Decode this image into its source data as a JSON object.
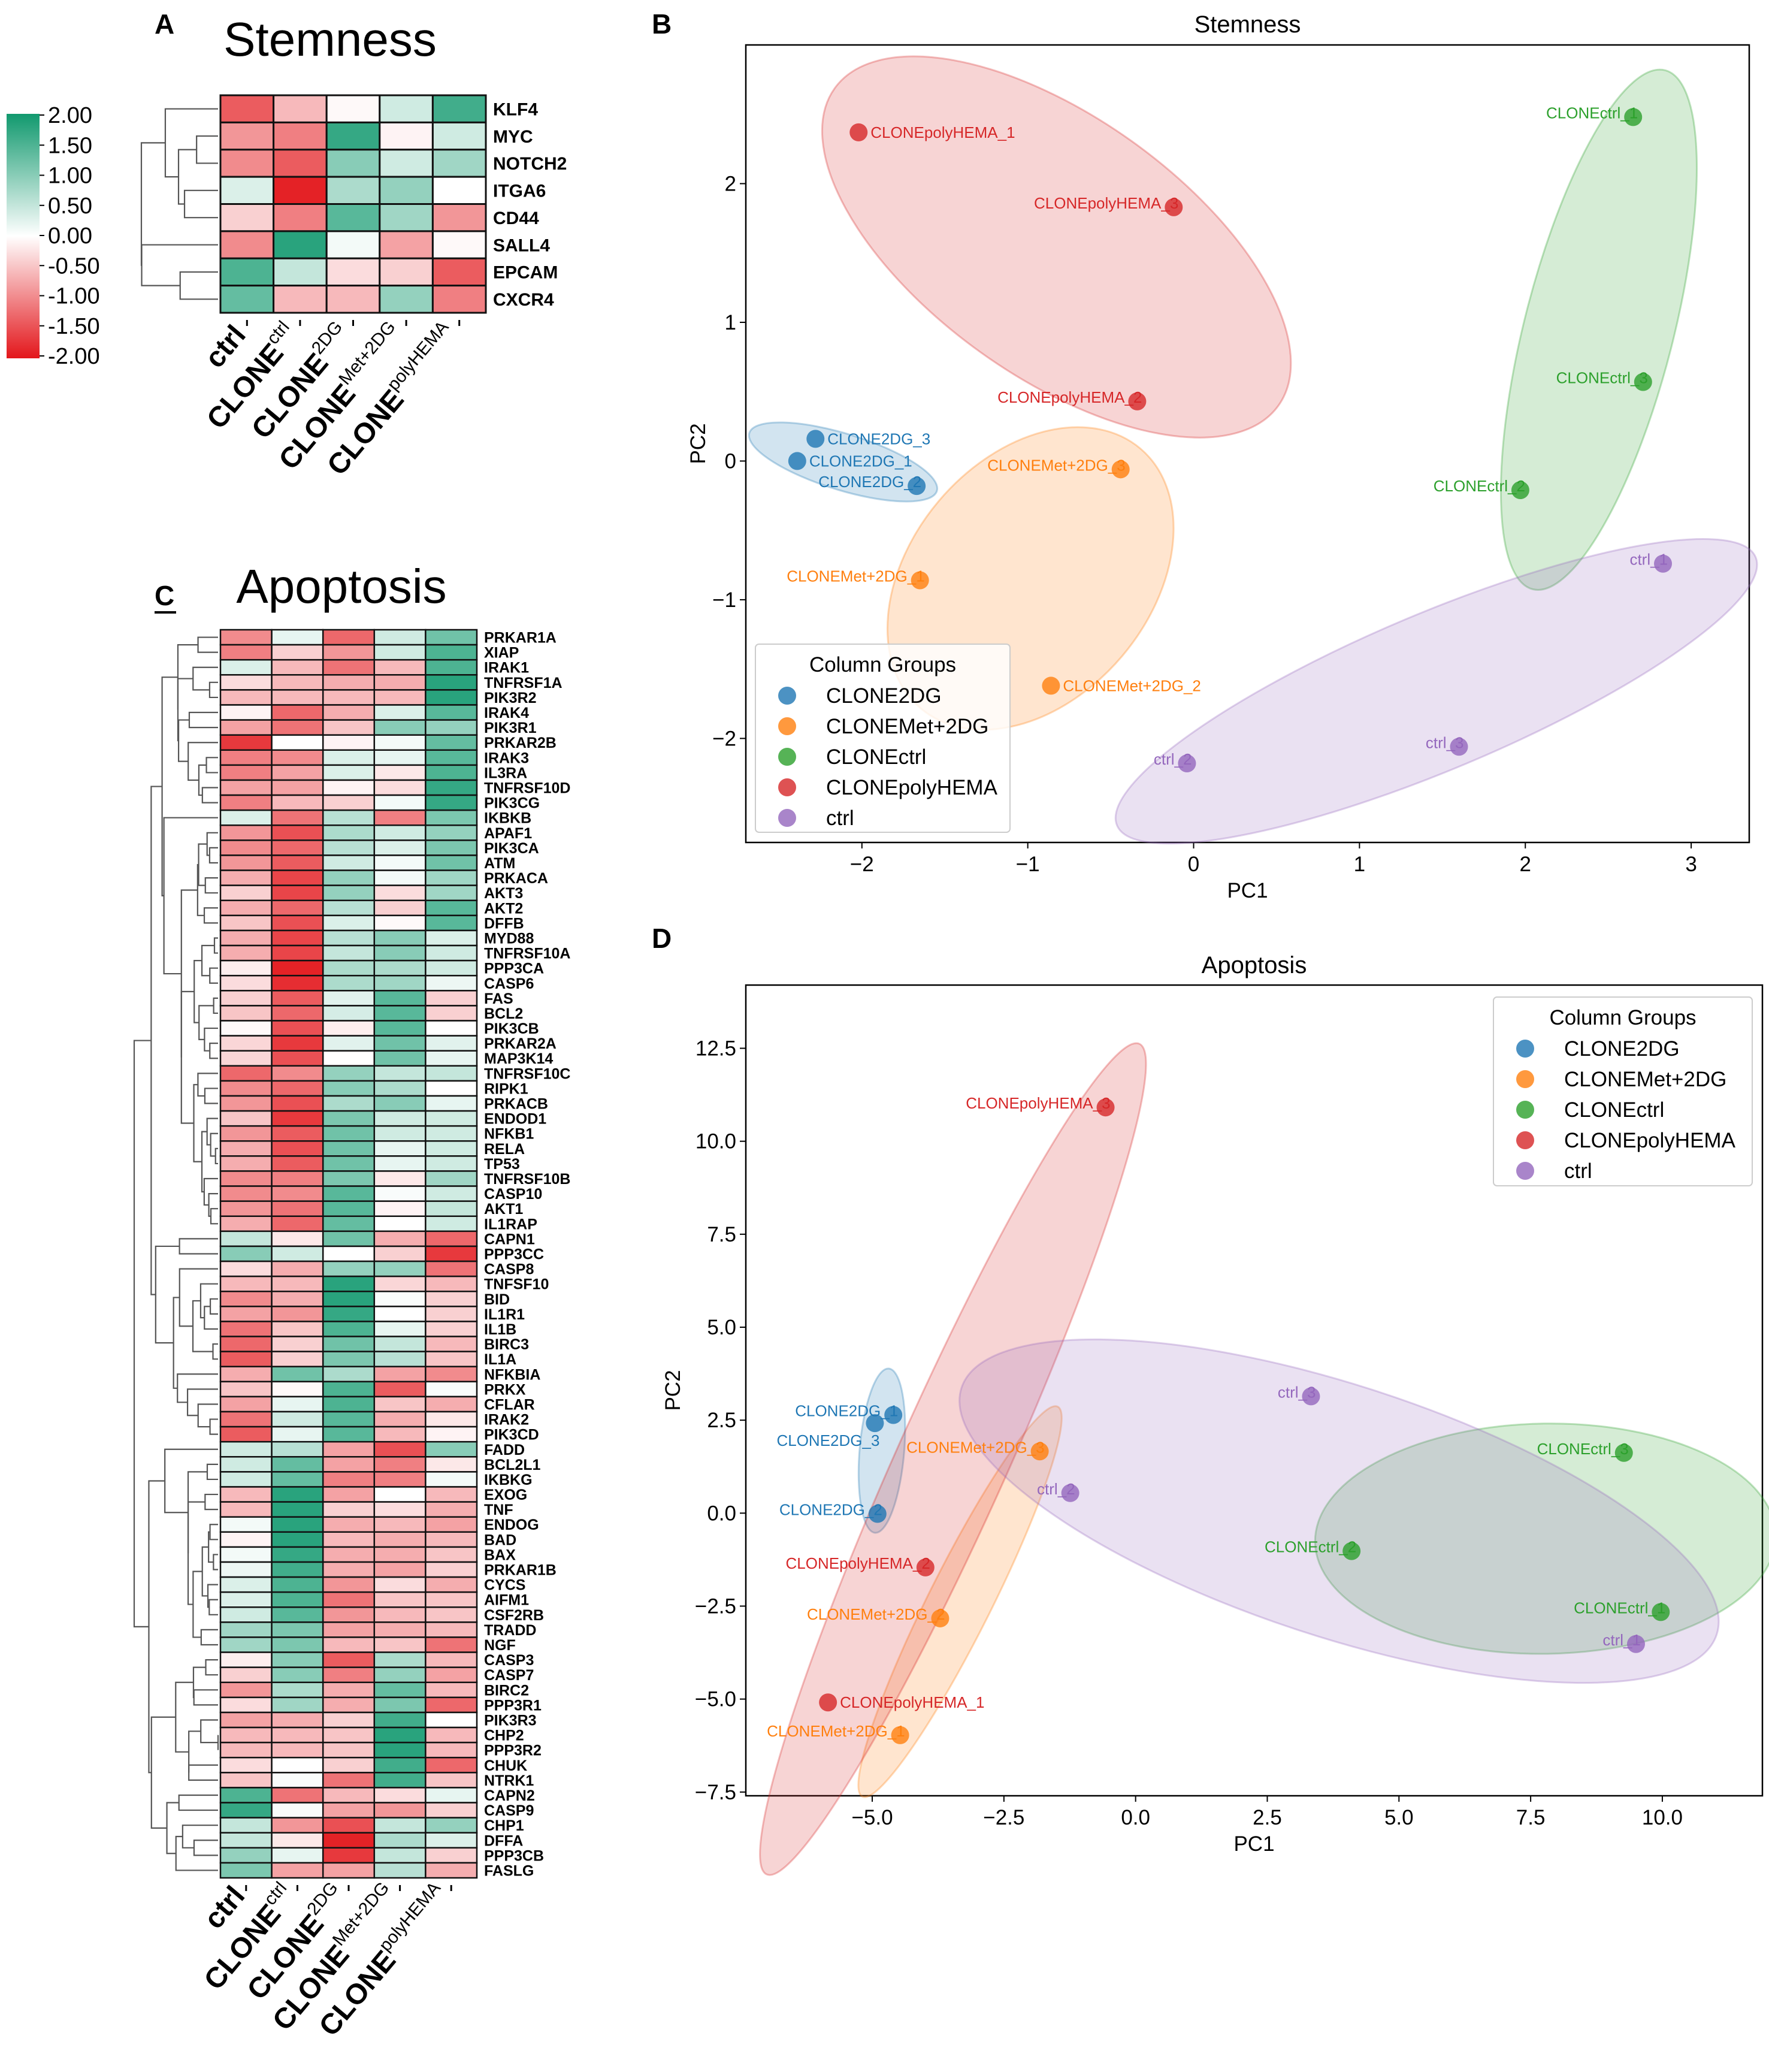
{
  "panels": {
    "a": "A",
    "b": "B",
    "c": "C",
    "d": "D"
  },
  "colorbar": {
    "min": -2,
    "max": 2,
    "tick_values": [
      2,
      1.5,
      1,
      0.5,
      0,
      -0.5,
      -1,
      -1.5,
      -2
    ],
    "tick_labels": [
      "2.00",
      "1.50",
      "1.00",
      "0.50",
      "0.00",
      "-0.50",
      "-1.00",
      "-1.50",
      "-2.00"
    ],
    "colors": {
      "low": "#e3161b",
      "mid": "#ffffff",
      "high": "#11996e"
    }
  },
  "group_colors": {
    "CLONE2DG": "#1f77b4",
    "CLONEMet+2DG": "#ff7f0e",
    "CLONEctrl": "#2ca02c",
    "CLONEpolyHEMA": "#d62728",
    "ctrl": "#9467bd"
  },
  "chart_data": [
    {
      "type": "heatmap",
      "title": "Stemness",
      "columns": [
        {
          "base": "ctrl",
          "sup": ""
        },
        {
          "base": "CLONE",
          "sup": "ctrl"
        },
        {
          "base": "CLONE",
          "sup": "2DG"
        },
        {
          "base": "CLONE",
          "sup": "Met+2DG"
        },
        {
          "base": "CLONE",
          "sup": "polyHEMA"
        }
      ],
      "rows": [
        "KLF4",
        "MYC",
        "NOTCH2",
        "ITGA6",
        "CD44",
        "SALL4",
        "EPCAM",
        "CXCR4"
      ],
      "values": [
        [
          -1.4,
          -0.6,
          -0.05,
          0.4,
          1.6
        ],
        [
          -0.9,
          -1.1,
          1.7,
          -0.1,
          0.4
        ],
        [
          -1.0,
          -1.4,
          1.0,
          0.4,
          0.8
        ],
        [
          0.3,
          -1.9,
          0.7,
          0.9,
          0.0
        ],
        [
          -0.4,
          -1.1,
          1.4,
          0.8,
          -0.9
        ],
        [
          -1.0,
          1.8,
          0.1,
          -0.8,
          -0.05
        ],
        [
          1.5,
          0.5,
          -0.3,
          -0.4,
          -1.4
        ],
        [
          1.3,
          -0.6,
          -0.6,
          0.9,
          -1.1
        ]
      ],
      "value_range": [
        -2,
        2
      ]
    },
    {
      "type": "heatmap",
      "title": "Apoptosis",
      "columns": [
        {
          "base": "ctrl",
          "sup": ""
        },
        {
          "base": "CLONE",
          "sup": "ctrl"
        },
        {
          "base": "CLONE",
          "sup": "2DG"
        },
        {
          "base": "CLONE",
          "sup": "Met+2DG"
        },
        {
          "base": "CLONE",
          "sup": "polyHEMA"
        }
      ],
      "rows": [
        "PRKAR1A",
        "XIAP",
        "IRAK1",
        "TNFRSF1A",
        "PIK3R2",
        "IRAK4",
        "PIK3R1",
        "PRKAR2B",
        "IRAK3",
        "IL3RA",
        "TNFRSF10D",
        "PIK3CG",
        "IKBKB",
        "APAF1",
        "PIK3CA",
        "ATM",
        "PRKACA",
        "AKT3",
        "AKT2",
        "DFFB",
        "MYD88",
        "TNFRSF10A",
        "PPP3CA",
        "CASP6",
        "FAS",
        "BCL2",
        "PIK3CB",
        "PRKAR2A",
        "MAP3K14",
        "TNFRSF10C",
        "RIPK1",
        "PRKACB",
        "ENDOD1",
        "NFKB1",
        "RELA",
        "TP53",
        "TNFRSF10B",
        "CASP10",
        "AKT1",
        "IL1RAP",
        "CAPN1",
        "PPP3CC",
        "CASP8",
        "TNFSF10",
        "BID",
        "IL1R1",
        "IL1B",
        "BIRC3",
        "IL1A",
        "NFKBIA",
        "PRKX",
        "CFLAR",
        "IRAK2",
        "PIK3CD",
        "FADD",
        "BCL2L1",
        "IKBKG",
        "EXOG",
        "TNF",
        "ENDOG",
        "BAD",
        "BAX",
        "PRKAR1B",
        "CYCS",
        "AIFM1",
        "CSF2RB",
        "TRADD",
        "NGF",
        "CASP3",
        "CASP7",
        "BIRC2",
        "PPP3R1",
        "PIK3R3",
        "CHP2",
        "PPP3R2",
        "CHUK",
        "NTRK1",
        "CAPN2",
        "CASP9",
        "CHP1",
        "DFFA",
        "PPP3CB",
        "FASLG"
      ],
      "values": [
        [
          -1.0,
          0.2,
          -1.3,
          0.4,
          1.2
        ],
        [
          -1.1,
          -0.4,
          -0.9,
          0.4,
          1.5
        ],
        [
          0.3,
          -0.6,
          -1.2,
          -0.6,
          1.5
        ],
        [
          -0.3,
          -0.6,
          -0.7,
          -0.7,
          1.8
        ],
        [
          -0.6,
          -0.6,
          -0.6,
          -0.6,
          1.8
        ],
        [
          -0.1,
          -1.3,
          -0.7,
          0.3,
          1.4
        ],
        [
          -0.8,
          -1.2,
          -0.5,
          1.0,
          0.9
        ],
        [
          -1.7,
          0.0,
          -0.1,
          0.1,
          1.3
        ],
        [
          -1.1,
          -1.0,
          0.3,
          0.2,
          1.4
        ],
        [
          -1.1,
          -0.8,
          0.3,
          -0.2,
          1.5
        ],
        [
          -0.8,
          -0.8,
          -0.1,
          -0.3,
          1.7
        ],
        [
          -1.1,
          -0.6,
          -0.4,
          0.1,
          1.7
        ],
        [
          0.3,
          -1.2,
          0.6,
          -1.1,
          1.1
        ],
        [
          -0.9,
          -1.5,
          0.7,
          0.4,
          0.9
        ],
        [
          -1.0,
          -1.3,
          0.6,
          0.3,
          1.1
        ],
        [
          -0.9,
          -1.4,
          0.4,
          0.1,
          1.2
        ],
        [
          -0.7,
          -1.6,
          0.9,
          0.1,
          0.8
        ],
        [
          -0.4,
          -1.6,
          0.9,
          -0.3,
          0.8
        ],
        [
          -0.7,
          -1.3,
          0.6,
          -0.4,
          1.4
        ],
        [
          -0.5,
          -1.5,
          0.3,
          -0.05,
          1.4
        ],
        [
          -0.7,
          -1.6,
          0.6,
          1.0,
          0.3
        ],
        [
          -0.7,
          -1.6,
          0.5,
          1.0,
          0.4
        ],
        [
          -0.15,
          -1.9,
          0.7,
          0.7,
          0.4
        ],
        [
          -0.3,
          -1.8,
          0.7,
          0.8,
          0.15
        ],
        [
          -0.4,
          -1.4,
          0.25,
          1.4,
          -0.4
        ],
        [
          -0.5,
          -1.3,
          0.35,
          1.4,
          -0.4
        ],
        [
          -0.05,
          -1.5,
          -0.15,
          1.4,
          0.0
        ],
        [
          -0.35,
          -1.7,
          0.25,
          1.2,
          0.25
        ],
        [
          -0.35,
          -1.5,
          0.0,
          1.2,
          0.2
        ],
        [
          -1.3,
          -1.0,
          0.9,
          0.5,
          0.5
        ],
        [
          -1.0,
          -1.3,
          1.0,
          0.7,
          0.0
        ],
        [
          -0.9,
          -1.5,
          0.7,
          1.0,
          0.2
        ],
        [
          -0.5,
          -1.7,
          1.1,
          0.4,
          0.4
        ],
        [
          -0.9,
          -1.4,
          1.2,
          0.4,
          0.4
        ],
        [
          -0.7,
          -1.5,
          1.2,
          0.2,
          0.4
        ],
        [
          -0.7,
          -1.4,
          1.2,
          0.2,
          0.4
        ],
        [
          -1.0,
          -1.1,
          1.1,
          -0.2,
          0.8
        ],
        [
          -1.0,
          -1.0,
          1.4,
          0.05,
          0.4
        ],
        [
          -0.9,
          -1.2,
          1.4,
          -0.1,
          0.5
        ],
        [
          -0.7,
          -1.3,
          1.3,
          0.0,
          0.4
        ],
        [
          0.5,
          -0.2,
          1.2,
          -0.7,
          -1.3
        ],
        [
          1.0,
          0.4,
          0.0,
          -0.4,
          -1.7
        ],
        [
          -0.3,
          -0.7,
          0.9,
          0.9,
          -1.2
        ],
        [
          -0.6,
          -0.6,
          1.8,
          -0.35,
          -0.6
        ],
        [
          -1.0,
          -0.7,
          1.8,
          0.05,
          -0.4
        ],
        [
          -0.8,
          -0.9,
          1.7,
          0.0,
          -0.4
        ],
        [
          -1.2,
          -0.5,
          1.5,
          0.2,
          -0.4
        ],
        [
          -1.3,
          -0.4,
          1.2,
          0.5,
          -0.6
        ],
        [
          -1.4,
          -0.4,
          1.1,
          0.6,
          -0.5
        ],
        [
          -0.7,
          1.2,
          0.7,
          -0.8,
          -1.0
        ],
        [
          -0.5,
          -0.05,
          1.5,
          -1.4,
          0.05
        ],
        [
          -0.8,
          0.2,
          1.5,
          -0.5,
          -0.7
        ],
        [
          -1.2,
          0.4,
          1.4,
          -0.7,
          -0.2
        ],
        [
          -1.4,
          0.2,
          1.4,
          -0.6,
          -0.1
        ],
        [
          0.4,
          0.6,
          -0.8,
          -1.5,
          1.0
        ],
        [
          0.4,
          1.3,
          -0.8,
          -1.1,
          -0.2
        ],
        [
          0.4,
          1.3,
          -1.1,
          -1.1,
          0.1
        ],
        [
          -0.6,
          1.8,
          -0.8,
          0.0,
          -0.6
        ],
        [
          -0.6,
          1.8,
          -0.4,
          -0.3,
          -0.7
        ],
        [
          0.1,
          1.8,
          -0.7,
          -0.6,
          -0.8
        ],
        [
          -0.1,
          1.8,
          -0.6,
          -0.7,
          -0.6
        ],
        [
          0.1,
          1.7,
          -0.7,
          -0.7,
          -0.5
        ],
        [
          0.15,
          1.6,
          -0.7,
          -0.8,
          -0.4
        ],
        [
          0.3,
          1.5,
          -0.9,
          -0.3,
          -0.7
        ],
        [
          0.3,
          1.5,
          -1.2,
          -0.5,
          -0.5
        ],
        [
          0.4,
          1.4,
          -0.9,
          -0.6,
          -0.5
        ],
        [
          0.8,
          1.1,
          -0.8,
          -0.7,
          -0.6
        ],
        [
          0.8,
          1.1,
          -0.6,
          -0.5,
          -1.2
        ],
        [
          -0.15,
          1.0,
          -1.4,
          0.7,
          -0.6
        ],
        [
          -0.4,
          1.0,
          -1.1,
          0.9,
          -0.8
        ],
        [
          -0.9,
          0.7,
          -0.7,
          1.3,
          -0.6
        ],
        [
          -0.3,
          0.8,
          -0.7,
          1.1,
          -1.3
        ],
        [
          -0.8,
          -0.7,
          -0.4,
          1.6,
          0.0
        ],
        [
          -0.6,
          -0.6,
          -0.5,
          1.8,
          -0.6
        ],
        [
          -0.6,
          -0.6,
          -0.5,
          1.8,
          -0.6
        ],
        [
          -0.3,
          0.0,
          -0.4,
          1.6,
          -1.3
        ],
        [
          -0.5,
          0.05,
          -1.2,
          1.6,
          -0.5
        ],
        [
          1.5,
          -1.2,
          -0.6,
          -0.3,
          0.2
        ],
        [
          1.7,
          0.05,
          -0.8,
          -0.9,
          -0.4
        ],
        [
          0.5,
          -0.9,
          -1.5,
          0.5,
          0.9
        ],
        [
          0.5,
          -0.2,
          -1.9,
          0.7,
          0.3
        ],
        [
          0.9,
          0.2,
          -1.7,
          0.5,
          -0.4
        ],
        [
          1.1,
          -0.8,
          -0.8,
          0.6,
          -0.7
        ]
      ],
      "value_range": [
        -2,
        2
      ]
    },
    {
      "type": "scatter",
      "title": "Stemness",
      "xlabel": "PC1",
      "ylabel": "PC2",
      "xlim": [
        -2.7,
        3.35
      ],
      "ylim": [
        -2.75,
        3.0
      ],
      "xticks": [
        -2,
        -1,
        0,
        1,
        2,
        3
      ],
      "xtick_labels": [
        "−2",
        "−1",
        "0",
        "1",
        "2",
        "3"
      ],
      "yticks": [
        -2,
        -1,
        0,
        1,
        2
      ],
      "ytick_labels": [
        "−2",
        "−1",
        "0",
        "1",
        "2"
      ],
      "legend": {
        "title": "Column Groups",
        "position": "lower-left"
      },
      "groups": [
        {
          "name": "CLONE2DG",
          "points": [
            {
              "label": "CLONE2DG_1",
              "x": -2.39,
              "y": 0.0
            },
            {
              "label": "CLONE2DG_2",
              "x": -1.67,
              "y": -0.18
            },
            {
              "label": "CLONE2DG_3",
              "x": -2.28,
              "y": 0.16
            }
          ]
        },
        {
          "name": "CLONEMet+2DG",
          "points": [
            {
              "label": "CLONEMet+2DG_1",
              "x": -1.65,
              "y": -0.86
            },
            {
              "label": "CLONEMet+2DG_2",
              "x": -0.86,
              "y": -1.62
            },
            {
              "label": "CLONEMet+2DG_3",
              "x": -0.44,
              "y": -0.06
            }
          ]
        },
        {
          "name": "CLONEctrl",
          "points": [
            {
              "label": "CLONEctrl_1",
              "x": 2.65,
              "y": 2.48
            },
            {
              "label": "CLONEctrl_2",
              "x": 1.97,
              "y": -0.21
            },
            {
              "label": "CLONEctrl_3",
              "x": 2.71,
              "y": 0.57
            }
          ]
        },
        {
          "name": "CLONEpolyHEMA",
          "points": [
            {
              "label": "CLONEpolyHEMA_1",
              "x": -2.02,
              "y": 2.37
            },
            {
              "label": "CLONEpolyHEMA_2",
              "x": -0.34,
              "y": 0.43
            },
            {
              "label": "CLONEpolyHEMA_3",
              "x": -0.12,
              "y": 1.83
            }
          ]
        },
        {
          "name": "ctrl",
          "points": [
            {
              "label": "ctrl_1",
              "x": 2.83,
              "y": -0.74
            },
            {
              "label": "ctrl_2",
              "x": -0.04,
              "y": -2.18
            },
            {
              "label": "ctrl_3",
              "x": 1.6,
              "y": -2.06
            }
          ]
        }
      ]
    },
    {
      "type": "scatter",
      "title": "Apoptosis",
      "xlabel": "PC1",
      "ylabel": "PC2",
      "xlim": [
        -7.4,
        11.9
      ],
      "ylim": [
        -7.6,
        14.2
      ],
      "xticks": [
        -5,
        -2.5,
        0,
        2.5,
        5,
        7.5,
        10
      ],
      "xtick_labels": [
        "−5.0",
        "−2.5",
        "0.0",
        "2.5",
        "5.0",
        "7.5",
        "10.0"
      ],
      "yticks": [
        -7.5,
        -5,
        -2.5,
        0,
        2.5,
        5,
        7.5,
        10,
        12.5
      ],
      "ytick_labels": [
        "−7.5",
        "−5.0",
        "−2.5",
        "0.0",
        "2.5",
        "5.0",
        "7.5",
        "10.0",
        "12.5"
      ],
      "legend": {
        "title": "Column Groups",
        "position": "upper-right"
      },
      "groups": [
        {
          "name": "CLONE2DG",
          "points": [
            {
              "label": "CLONE2DG_1",
              "x": -4.6,
              "y": 2.64
            },
            {
              "label": "CLONE2DG_2",
              "x": -4.9,
              "y": -0.02
            },
            {
              "label": "CLONE2DG_3",
              "x": -4.95,
              "y": 2.42
            }
          ]
        },
        {
          "name": "CLONEMet+2DG",
          "points": [
            {
              "label": "CLONEMet+2DG_1",
              "x": -4.47,
              "y": -5.97
            },
            {
              "label": "CLONEMet+2DG_2",
              "x": -3.71,
              "y": -2.83
            },
            {
              "label": "CLONEMet+2DG_3",
              "x": -1.82,
              "y": 1.66
            }
          ]
        },
        {
          "name": "CLONEctrl",
          "points": [
            {
              "label": "CLONEctrl_1",
              "x": 9.97,
              "y": -2.66
            },
            {
              "label": "CLONEctrl_2",
              "x": 4.1,
              "y": -1.02
            },
            {
              "label": "CLONEctrl_3",
              "x": 9.27,
              "y": 1.62
            }
          ]
        },
        {
          "name": "CLONEpolyHEMA",
          "points": [
            {
              "label": "CLONEpolyHEMA_1",
              "x": -5.84,
              "y": -5.09
            },
            {
              "label": "CLONEpolyHEMA_2",
              "x": -3.99,
              "y": -1.46
            },
            {
              "label": "CLONEpolyHEMA_3",
              "x": -0.57,
              "y": 10.91
            }
          ]
        },
        {
          "name": "ctrl",
          "points": [
            {
              "label": "ctrl_1",
              "x": 9.5,
              "y": -3.52
            },
            {
              "label": "ctrl_2",
              "x": -1.24,
              "y": 0.54
            },
            {
              "label": "ctrl_3",
              "x": 3.33,
              "y": 3.14
            }
          ]
        }
      ]
    }
  ]
}
